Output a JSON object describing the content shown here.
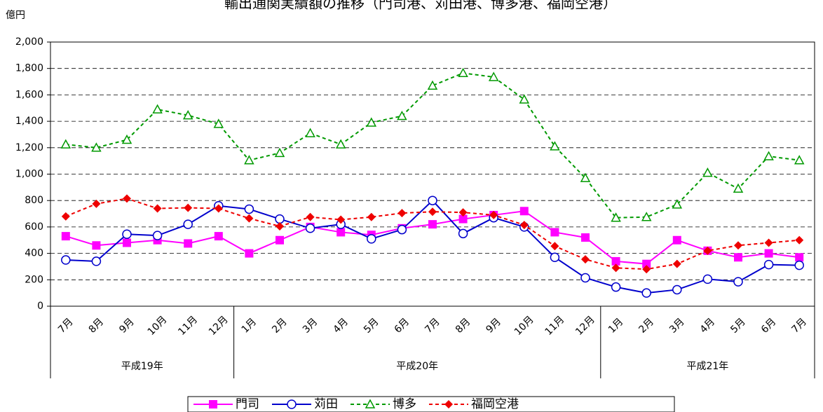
{
  "chart_data": {
    "type": "line",
    "title": "輸出通関実績額の推移（門司港、苅田港、博多港、福岡空港）",
    "y_label": "億円",
    "categories": [
      "7月",
      "8月",
      "9月",
      "10月",
      "11月",
      "12月",
      "1月",
      "2月",
      "3月",
      "4月",
      "5月",
      "6月",
      "7月",
      "8月",
      "9月",
      "10月",
      "11月",
      "12月",
      "1月",
      "2月",
      "3月",
      "4月",
      "5月",
      "6月",
      "7月"
    ],
    "groups": [
      {
        "label": "平成19年",
        "span": 6
      },
      {
        "label": "平成20年",
        "span": 12
      },
      {
        "label": "平成21年",
        "span": 7
      }
    ],
    "ylim": [
      0,
      2000
    ],
    "yticks": [
      0,
      200,
      400,
      600,
      800,
      {
        "value": 1000,
        "label": "1,000"
      },
      {
        "value": 1200,
        "label": "1,200"
      },
      {
        "value": 1400,
        "label": "1,400"
      },
      {
        "value": 1600,
        "label": "1,600"
      },
      {
        "value": 1800,
        "label": "1,800"
      },
      {
        "value": 2000,
        "label": "2,000"
      }
    ],
    "grid": true,
    "legend": "bottom",
    "series": [
      {
        "name": "門司",
        "color": "#ff00ff",
        "marker": "square",
        "dash": false,
        "values": [
          530,
          460,
          480,
          500,
          475,
          530,
          400,
          500,
          600,
          560,
          540,
          590,
          620,
          660,
          690,
          720,
          560,
          520,
          340,
          320,
          500,
          420,
          370,
          400,
          370
        ]
      },
      {
        "name": "苅田",
        "color": "#0000cc",
        "marker": "circle",
        "dash": false,
        "values": [
          350,
          340,
          545,
          535,
          620,
          760,
          735,
          660,
          590,
          620,
          510,
          580,
          800,
          550,
          670,
          600,
          370,
          215,
          145,
          100,
          125,
          205,
          185,
          315,
          310
        ]
      },
      {
        "name": "博多",
        "color": "#009900",
        "marker": "triangle",
        "dash": true,
        "values": [
          1225,
          1200,
          1260,
          1490,
          1445,
          1380,
          1105,
          1160,
          1310,
          1225,
          1390,
          1440,
          1670,
          1765,
          1735,
          1565,
          1210,
          970,
          670,
          675,
          770,
          1010,
          890,
          1135,
          1105
        ]
      },
      {
        "name": "福岡空港",
        "color": "#ee0000",
        "marker": "diamond",
        "dash": true,
        "values": [
          680,
          775,
          815,
          740,
          745,
          740,
          665,
          605,
          675,
          655,
          675,
          705,
          715,
          710,
          690,
          615,
          455,
          355,
          290,
          280,
          320,
          420,
          460,
          480,
          500
        ]
      }
    ]
  }
}
